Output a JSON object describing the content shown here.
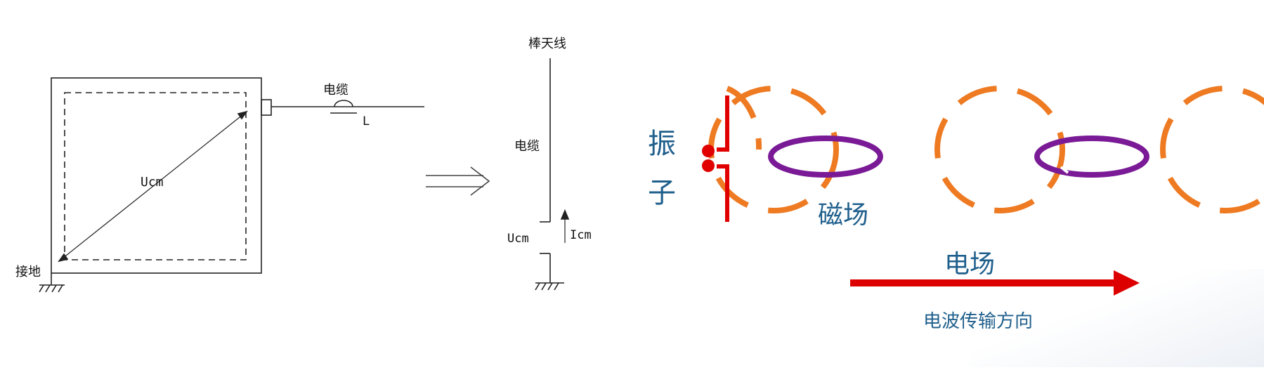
{
  "left_diagram": {
    "cable_label": "电缆",
    "length_label": "L",
    "voltage_label": "Ucm",
    "ground_label": "接地"
  },
  "middle_diagram": {
    "antenna_label": "棒天线",
    "cable_label": "电缆",
    "voltage_label": "Ucm",
    "current_label": "Icm"
  },
  "right_diagram": {
    "dipole_label": "振子",
    "magnetic_label": "磁场",
    "electric_label": "电场",
    "direction_label": "电波传输方向"
  },
  "colors": {
    "line": "#222222",
    "dipole": "#e00000",
    "magnetic": "#7a1a96",
    "electric": "#ee7a22",
    "arrow": "#dd0000",
    "label_blue": "#1f5f8c"
  }
}
